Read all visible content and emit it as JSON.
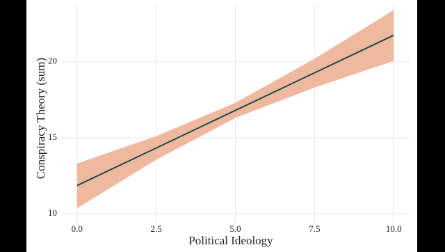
{
  "chart_data": {
    "type": "line",
    "x_label": "Political Ideology",
    "y_label": "Conspiracy Theory (sum)",
    "x": [
      0,
      2.5,
      5,
      7.5,
      10
    ],
    "values": [
      11.85,
      14.32,
      16.8,
      19.27,
      21.75
    ],
    "lower": [
      10.35,
      13.55,
      16.3,
      18.3,
      20.05
    ],
    "upper": [
      13.3,
      15.1,
      17.3,
      20.2,
      23.4
    ],
    "color": "#1e4a46",
    "band_color": "#efb9a0",
    "xlim": [
      -0.5,
      10.5
    ],
    "ylim": [
      9.4,
      23.7
    ],
    "xticks": [
      {
        "value": 0,
        "label": "0.0"
      },
      {
        "value": 2.5,
        "label": "2.5"
      },
      {
        "value": 5,
        "label": "5.0"
      },
      {
        "value": 7.5,
        "label": "7.5"
      },
      {
        "value": 10,
        "label": "10.0"
      }
    ],
    "yticks": [
      10,
      15,
      20
    ],
    "grid": true
  }
}
